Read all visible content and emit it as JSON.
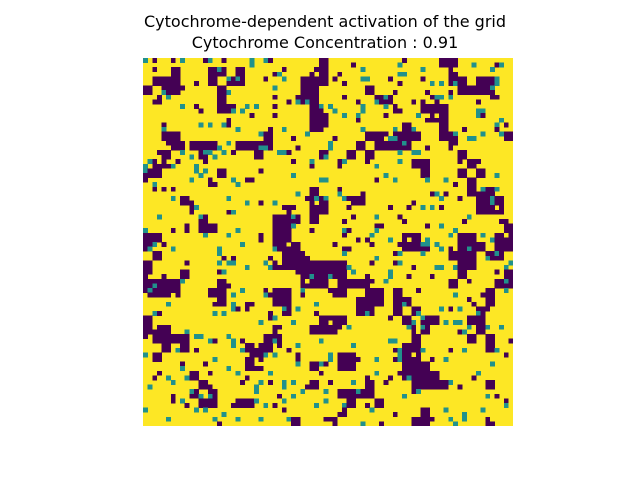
{
  "chart_data": {
    "type": "heatmap",
    "title": "Cytochrome-dependent activation of the grid",
    "subtitle": "Cytochrome Concentration : 0.91",
    "xlabel": "",
    "ylabel": "",
    "axes_visible": false,
    "grid": false,
    "legend": "none",
    "colormap": "viridis",
    "grid_size": [
      80,
      80
    ],
    "levels": [
      0,
      0.5,
      1
    ],
    "colors": {
      "inactive": "#440154",
      "intermediate": "#21918c",
      "active": "#fde725"
    },
    "activation_concentration": 0.91,
    "random_seed": 9173
  }
}
